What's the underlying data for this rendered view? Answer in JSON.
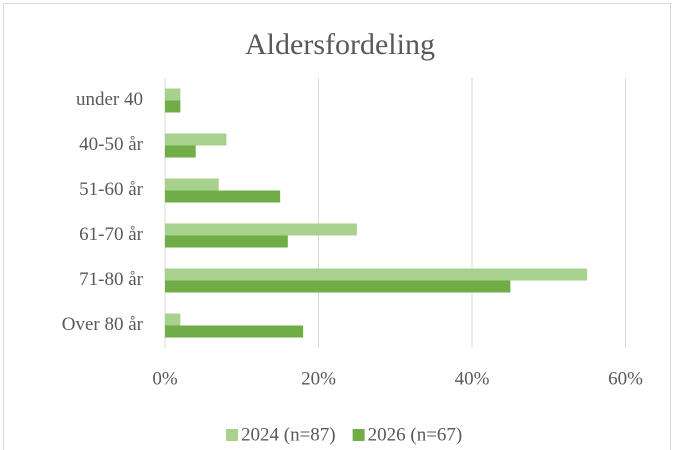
{
  "chart_data": {
    "type": "bar",
    "orientation": "horizontal",
    "title": "Aldersfordeling",
    "categories": [
      "under 40",
      "40-50 år",
      "51-60 år",
      "61-70 år",
      "71-80 år",
      "Over 80 år"
    ],
    "series": [
      {
        "name": "2024 (n=87)",
        "color": "#a9d18e",
        "values": [
          2,
          8,
          7,
          25,
          55,
          2
        ]
      },
      {
        "name": "2026 (n=67)",
        "color": "#70ad47",
        "values": [
          2,
          4,
          15,
          16,
          45,
          18
        ]
      }
    ],
    "xlim": [
      0,
      60
    ],
    "xticks": [
      {
        "value": 0,
        "label": "0%"
      },
      {
        "value": 20,
        "label": "20%"
      },
      {
        "value": 40,
        "label": "40%"
      },
      {
        "value": 60,
        "label": "60%"
      }
    ],
    "grid": true,
    "legend": "bottom"
  }
}
